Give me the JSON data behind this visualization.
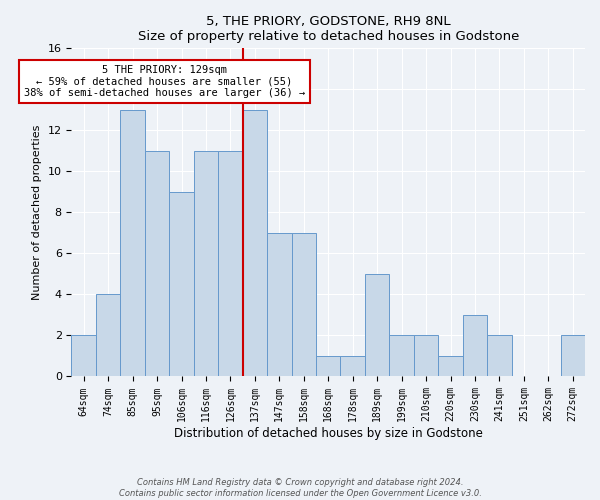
{
  "title": "5, THE PRIORY, GODSTONE, RH9 8NL",
  "subtitle": "Size of property relative to detached houses in Godstone",
  "xlabel": "Distribution of detached houses by size in Godstone",
  "ylabel": "Number of detached properties",
  "categories": [
    "64sqm",
    "74sqm",
    "85sqm",
    "95sqm",
    "106sqm",
    "116sqm",
    "126sqm",
    "137sqm",
    "147sqm",
    "158sqm",
    "168sqm",
    "178sqm",
    "189sqm",
    "199sqm",
    "210sqm",
    "220sqm",
    "230sqm",
    "241sqm",
    "251sqm",
    "262sqm",
    "272sqm"
  ],
  "values": [
    2,
    4,
    13,
    11,
    9,
    11,
    11,
    13,
    7,
    7,
    1,
    1,
    5,
    2,
    2,
    1,
    3,
    2,
    0,
    0,
    2
  ],
  "bar_color": "#c8d8e8",
  "bar_edge_color": "#6699cc",
  "highlight_line_index": 6,
  "annotation_line1": "5 THE PRIORY: 129sqm",
  "annotation_line2": "← 59% of detached houses are smaller (55)",
  "annotation_line3": "38% of semi-detached houses are larger (36) →",
  "annotation_box_color": "#ffffff",
  "annotation_box_edge": "#cc0000",
  "ylim": [
    0,
    16
  ],
  "yticks": [
    0,
    2,
    4,
    6,
    8,
    10,
    12,
    14,
    16
  ],
  "footer_line1": "Contains HM Land Registry data © Crown copyright and database right 2024.",
  "footer_line2": "Contains public sector information licensed under the Open Government Licence v3.0.",
  "bg_color": "#eef2f7",
  "plot_bg_color": "#eef2f7"
}
